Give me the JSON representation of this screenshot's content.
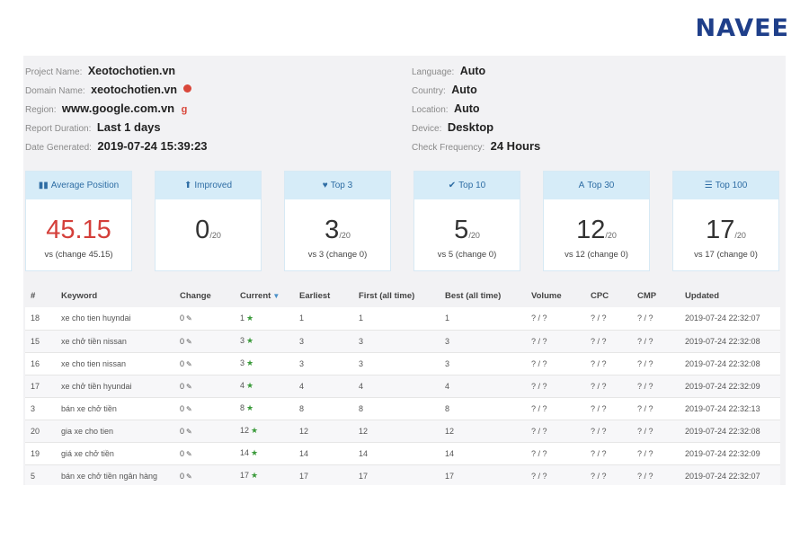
{
  "logo": "NAVEE",
  "info": {
    "left": [
      {
        "label": "Project Name:",
        "value": "Xeotochotien.vn"
      },
      {
        "label": "Domain Name:",
        "value": "xeotochotien.vn"
      },
      {
        "label": "Region:",
        "value": "www.google.com.vn"
      },
      {
        "label": "Report Duration:",
        "value": "Last 1 days"
      },
      {
        "label": "Date Generated:",
        "value": "2019-07-24 15:39:23"
      }
    ],
    "right": [
      {
        "label": "Language:",
        "value": "Auto"
      },
      {
        "label": "Country:",
        "value": "Auto"
      },
      {
        "label": "Location:",
        "value": "Auto"
      },
      {
        "label": "Device:",
        "value": "Desktop"
      },
      {
        "label": "Check Frequency:",
        "value": "24 Hours"
      }
    ],
    "region_icon": "g"
  },
  "cards": [
    {
      "icon": "bar-chart-icon",
      "glyph": "▮▮",
      "title": "Average Position",
      "value": "45.15",
      "suffix": "",
      "footer": "vs (change 45.15)"
    },
    {
      "icon": "arrow-up-icon",
      "glyph": "⬆",
      "title": "Improved",
      "value": "0",
      "suffix": "/20",
      "footer": ""
    },
    {
      "icon": "heart-icon",
      "glyph": "♥",
      "title": "Top 3",
      "value": "3",
      "suffix": "/20",
      "footer": "vs 3 (change 0)"
    },
    {
      "icon": "check-icon",
      "glyph": "✔",
      "title": "Top 10",
      "value": "5",
      "suffix": "/20",
      "footer": "vs 5 (change 0)"
    },
    {
      "icon": "road-icon",
      "glyph": "A",
      "title": "Top 30",
      "value": "12",
      "suffix": "/20",
      "footer": "vs 12 (change 0)"
    },
    {
      "icon": "stack-icon",
      "glyph": "☰",
      "title": "Top 100",
      "value": "17",
      "suffix": "/20",
      "footer": "vs 17 (change 0)"
    }
  ],
  "table": {
    "headers": [
      "#",
      "Keyword",
      "Change",
      "Current",
      "Earliest",
      "First (all time)",
      "Best (all time)",
      "Volume",
      "CPC",
      "CMP",
      "Updated"
    ],
    "rows": [
      [
        "18",
        "xe cho tien huyndai",
        "0",
        "1",
        "1",
        "1",
        "1",
        "? / ?",
        "? / ?",
        "? / ?",
        "2019-07-24 22:32:07"
      ],
      [
        "15",
        "xe chở tiền nissan",
        "0",
        "3",
        "3",
        "3",
        "3",
        "? / ?",
        "? / ?",
        "? / ?",
        "2019-07-24 22:32:08"
      ],
      [
        "16",
        "xe cho tien nissan",
        "0",
        "3",
        "3",
        "3",
        "3",
        "? / ?",
        "? / ?",
        "? / ?",
        "2019-07-24 22:32:08"
      ],
      [
        "17",
        "xe chở tiền hyundai",
        "0",
        "4",
        "4",
        "4",
        "4",
        "? / ?",
        "? / ?",
        "? / ?",
        "2019-07-24 22:32:09"
      ],
      [
        "3",
        "bán xe chở tiền",
        "0",
        "8",
        "8",
        "8",
        "8",
        "? / ?",
        "? / ?",
        "? / ?",
        "2019-07-24 22:32:13"
      ],
      [
        "20",
        "gia xe cho tien",
        "0",
        "12",
        "12",
        "12",
        "12",
        "? / ?",
        "? / ?",
        "? / ?",
        "2019-07-24 22:32:08"
      ],
      [
        "19",
        "giá xe chở tiền",
        "0",
        "14",
        "14",
        "14",
        "14",
        "? / ?",
        "? / ?",
        "? / ?",
        "2019-07-24 22:32:09"
      ],
      [
        "5",
        "bán xe chở tiền ngân hàng",
        "0",
        "17",
        "17",
        "17",
        "17",
        "? / ?",
        "? / ?",
        "? / ?",
        "2019-07-24 22:32:07"
      ]
    ]
  }
}
